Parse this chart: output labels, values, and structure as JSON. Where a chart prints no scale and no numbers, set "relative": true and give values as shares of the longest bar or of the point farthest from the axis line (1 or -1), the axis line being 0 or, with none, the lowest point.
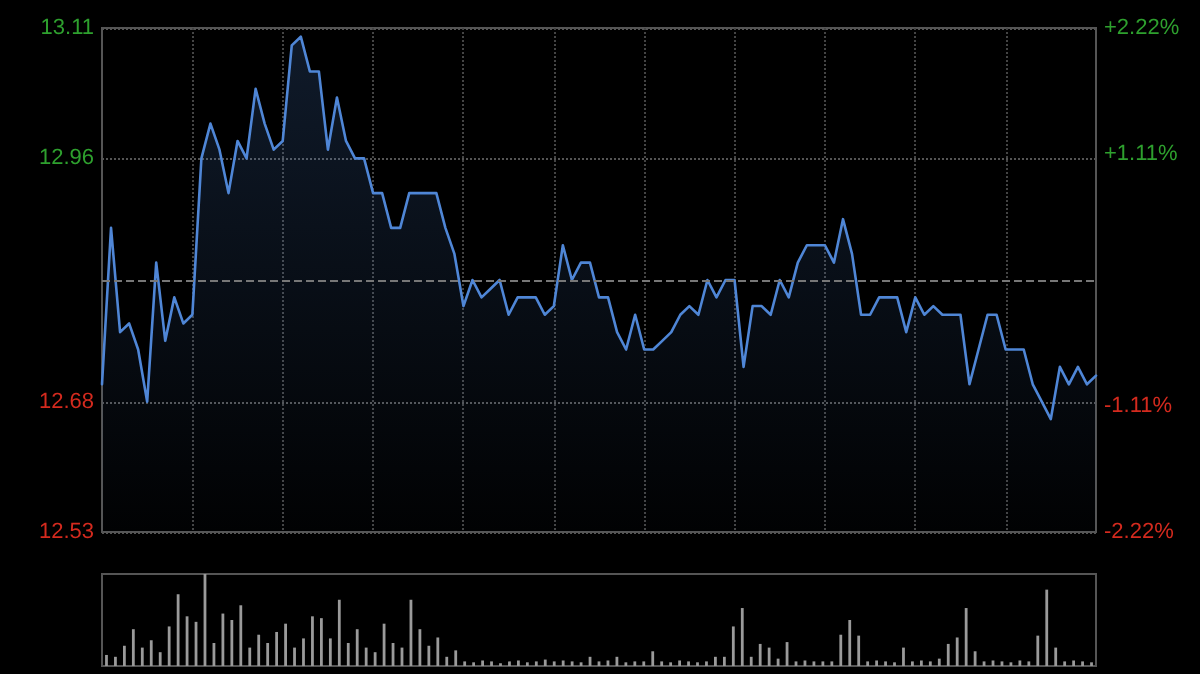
{
  "chart_data": [
    {
      "type": "area",
      "categories": [
        null,
        null,
        null,
        null,
        null,
        null,
        null,
        null,
        null,
        null,
        null,
        null,
        null,
        null,
        null,
        null,
        null,
        null,
        null,
        null,
        null,
        null,
        null,
        null,
        null,
        null,
        null,
        null,
        null,
        null,
        null,
        null,
        null,
        null,
        null,
        null,
        null,
        null,
        null,
        null,
        null,
        null,
        null,
        null,
        null,
        null,
        null,
        null,
        null,
        null,
        null,
        null,
        null,
        null,
        null,
        null,
        null,
        null,
        null,
        null,
        null,
        null,
        null,
        null,
        null,
        null,
        null,
        null,
        null,
        null,
        null,
        null,
        null,
        null,
        null,
        null,
        null,
        null,
        null,
        null,
        null,
        null,
        null,
        null,
        null,
        null,
        null,
        null,
        null,
        null,
        null,
        null,
        null,
        null,
        null,
        null,
        null,
        null,
        null,
        null,
        null,
        null,
        null,
        null,
        null,
        null,
        null,
        null,
        null,
        null,
        null
      ],
      "series": [
        {
          "color": "#4f86d6",
          "values": [
            12.7,
            12.88,
            12.76,
            12.77,
            12.74,
            12.68,
            12.84,
            12.75,
            12.8,
            12.77,
            12.78,
            12.96,
            13.0,
            12.97,
            12.92,
            12.98,
            12.96,
            13.04,
            13.0,
            12.97,
            12.98,
            13.09,
            13.1,
            13.06,
            13.06,
            12.97,
            13.03,
            12.98,
            12.96,
            12.96,
            12.92,
            12.92,
            12.88,
            12.88,
            12.92,
            12.92,
            12.92,
            12.92,
            12.88,
            12.85,
            12.79,
            12.82,
            12.8,
            12.81,
            12.82,
            12.78,
            12.8,
            12.8,
            12.8,
            12.78,
            12.79,
            12.86,
            12.82,
            12.84,
            12.84,
            12.8,
            12.8,
            12.76,
            12.74,
            12.78,
            12.74,
            12.74,
            12.75,
            12.76,
            12.78,
            12.79,
            12.78,
            12.82,
            12.8,
            12.82,
            12.82,
            12.72,
            12.79,
            12.79,
            12.78,
            12.82,
            12.8,
            12.84,
            12.86,
            12.86,
            12.86,
            12.84,
            12.89,
            12.85,
            12.78,
            12.78,
            12.8,
            12.8,
            12.8,
            12.76,
            12.8,
            12.78,
            12.79,
            12.78,
            12.78,
            12.78,
            12.7,
            12.74,
            12.78,
            12.78,
            12.74,
            12.74,
            12.74,
            12.7,
            12.68,
            12.66,
            12.72,
            12.7,
            12.72,
            12.7,
            12.71
          ]
        }
      ],
      "ylim": [
        12.53,
        13.11
      ],
      "yticks": [
        12.53,
        12.68,
        12.96,
        13.11
      ],
      "y2lim": [
        -2.22,
        2.22
      ],
      "y2ticks": [
        {
          "value": -2.22,
          "label": "-2.22%"
        },
        {
          "value": -1.11,
          "label": "-1.11%"
        },
        {
          "value": 1.11,
          "label": "+1.11%"
        },
        {
          "value": 2.22,
          "label": "+2.22%"
        }
      ],
      "ref_lines": [
        {
          "axis": "y",
          "value": 12.82,
          "line_style": "dashed"
        }
      ],
      "grid": true,
      "tick_labels": "y"
    },
    {
      "type": "bar",
      "relative": true,
      "categories": [
        null,
        null,
        null,
        null,
        null,
        null,
        null,
        null,
        null,
        null,
        null,
        null,
        null,
        null,
        null,
        null,
        null,
        null,
        null,
        null,
        null,
        null,
        null,
        null,
        null,
        null,
        null,
        null,
        null,
        null,
        null,
        null,
        null,
        null,
        null,
        null,
        null,
        null,
        null,
        null,
        null,
        null,
        null,
        null,
        null,
        null,
        null,
        null,
        null,
        null,
        null,
        null,
        null,
        null,
        null,
        null,
        null,
        null,
        null,
        null,
        null,
        null,
        null,
        null,
        null,
        null,
        null,
        null,
        null,
        null,
        null,
        null,
        null,
        null,
        null,
        null,
        null,
        null,
        null,
        null,
        null,
        null,
        null,
        null,
        null,
        null,
        null,
        null,
        null,
        null,
        null,
        null,
        null,
        null,
        null,
        null,
        null,
        null,
        null,
        null,
        null,
        null,
        null,
        null,
        null,
        null,
        null,
        null,
        null,
        null,
        null
      ],
      "series": [
        {
          "color": "#9a9a9a",
          "values": [
            0.12,
            0.1,
            0.22,
            0.4,
            0.2,
            0.28,
            0.15,
            0.43,
            0.78,
            0.54,
            0.48,
            1,
            0.25,
            0.57,
            0.5,
            0.66,
            0.2,
            0.34,
            0.25,
            0.37,
            0.46,
            0.2,
            0.3,
            0.54,
            0.52,
            0.3,
            0.72,
            0.25,
            0.4,
            0.2,
            0.15,
            0.46,
            0.25,
            0.2,
            0.72,
            0.4,
            0.22,
            0.31,
            0.1,
            0.17,
            0.05,
            0.04,
            0.06,
            0.05,
            0.03,
            0.05,
            0.06,
            0.04,
            0.05,
            0.07,
            0.05,
            0.06,
            0.05,
            0.04,
            0.1,
            0.05,
            0.06,
            0.1,
            0.04,
            0.05,
            0.05,
            0.16,
            0.05,
            0.04,
            0.06,
            0.05,
            0.04,
            0.05,
            0.1,
            0.1,
            0.43,
            0.63,
            0.1,
            0.24,
            0.2,
            0.08,
            0.26,
            0.05,
            0.06,
            0.05,
            0.05,
            0.05,
            0.34,
            0.5,
            0.33,
            0.05,
            0.06,
            0.05,
            0.04,
            0.2,
            0.05,
            0.06,
            0.05,
            0.08,
            0.24,
            0.31,
            0.63,
            0.16,
            0.05,
            0.06,
            0.05,
            0.04,
            0.06,
            0.05,
            0.33,
            0.83,
            0.2,
            0.05,
            0.06,
            0.05,
            0.04
          ]
        }
      ],
      "tick_labels": false
    }
  ]
}
